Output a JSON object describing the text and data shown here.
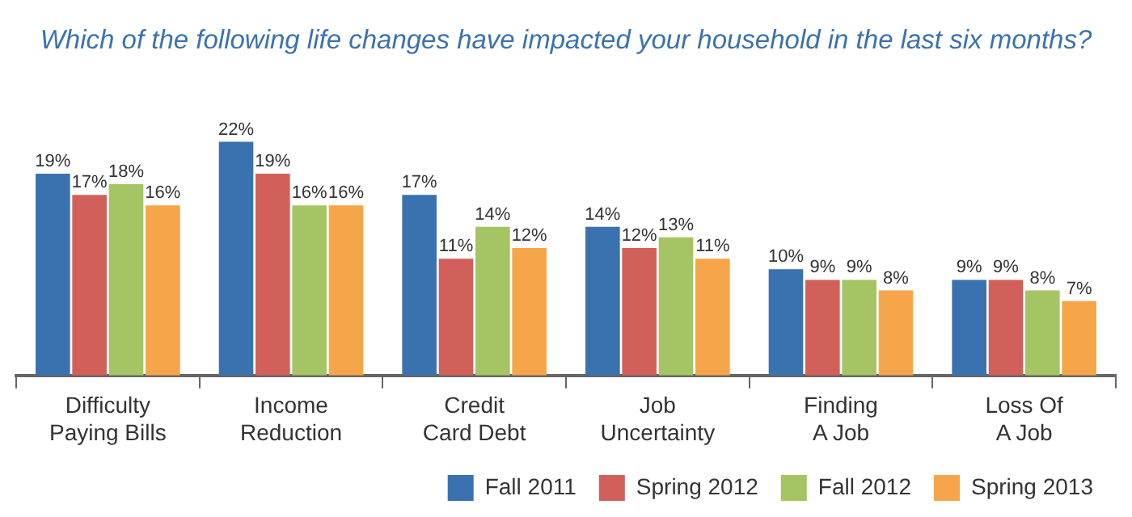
{
  "chart_data": {
    "type": "bar",
    "title": "Which of the following life changes have impacted your household in the last six months?",
    "categories": [
      "Difficulty Paying Bills",
      "Income Reduction",
      "Credit Card Debt",
      "Job Uncertainty",
      "Finding A Job",
      "Loss Of A Job"
    ],
    "series": [
      {
        "name": "Fall 2011",
        "color": "#3a72b0",
        "values": [
          19,
          22,
          17,
          14,
          10,
          9
        ],
        "value_labels": [
          "19%",
          "22%",
          "17%",
          "14%",
          "10%",
          "9%"
        ]
      },
      {
        "name": "Spring 2012",
        "color": "#d2605a",
        "values": [
          17,
          19,
          11,
          12,
          9,
          9
        ],
        "value_labels": [
          "17%",
          "19%",
          "11%",
          "12%",
          "9%",
          "9%"
        ]
      },
      {
        "name": "Fall 2012",
        "color": "#a5c464",
        "values": [
          18,
          16,
          14,
          13,
          9,
          8
        ],
        "value_labels": [
          "18%",
          "16%",
          "14%",
          "13%",
          "9%",
          "8%"
        ]
      },
      {
        "name": "Spring 2013",
        "color": "#f6a54a",
        "values": [
          16,
          16,
          12,
          11,
          8,
          7
        ],
        "value_labels": [
          "16%",
          "16%",
          "12%",
          "11%",
          "8%",
          "7%"
        ]
      }
    ],
    "legend": "bottom right",
    "grid": false
  }
}
